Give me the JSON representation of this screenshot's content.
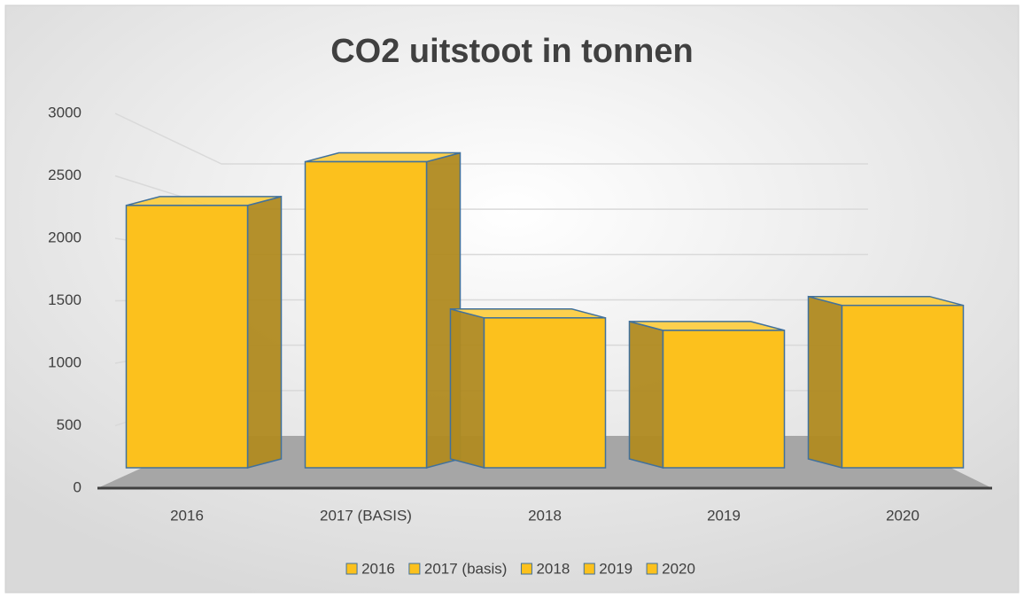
{
  "chart_data": {
    "type": "bar3d",
    "title": "CO2 uitstoot in tonnen",
    "categories": [
      "2016",
      "2017 (BASIS)",
      "2018",
      "2019",
      "2020"
    ],
    "series": [
      {
        "name": "2016",
        "color": "#fcc11d",
        "values": [
          2100,
          null,
          null,
          null,
          null
        ]
      },
      {
        "name": "2017 (basis)",
        "color": "#fcc11d",
        "values": [
          null,
          2450,
          null,
          null,
          null
        ]
      },
      {
        "name": "2018",
        "color": "#fcc11d",
        "values": [
          null,
          null,
          1200,
          null,
          null
        ]
      },
      {
        "name": "2019",
        "color": "#fcc11d",
        "values": [
          null,
          null,
          null,
          1100,
          null
        ]
      },
      {
        "name": "2020",
        "color": "#fcc11d",
        "values": [
          null,
          null,
          null,
          null,
          1300
        ]
      }
    ],
    "ylim": [
      0,
      3000
    ],
    "yticks": [
      0,
      500,
      1000,
      1500,
      2000,
      2500,
      3000
    ],
    "grid": true
  }
}
